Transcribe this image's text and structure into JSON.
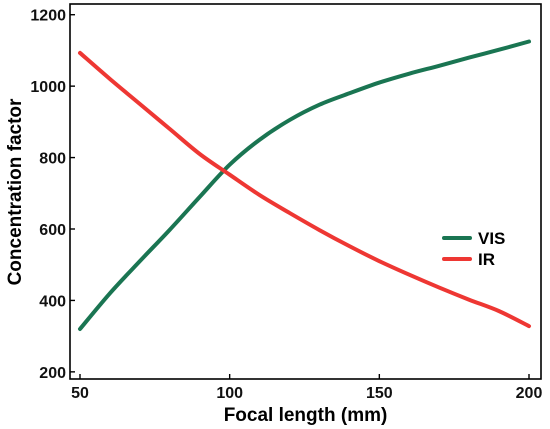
{
  "chart_data": {
    "type": "line",
    "title": "",
    "xlabel": "Focal length (mm)",
    "ylabel": "Concentration factor",
    "xlim": [
      50,
      200
    ],
    "ylim": [
      180,
      1230
    ],
    "xticks": [
      50,
      100,
      150,
      200
    ],
    "yticks": [
      200,
      400,
      600,
      800,
      1000,
      1200
    ],
    "grid": false,
    "legend_position": "right",
    "series": [
      {
        "name": "VIS",
        "color": "#1a7552",
        "x": [
          50,
          60,
          70,
          80,
          90,
          100,
          110,
          120,
          130,
          140,
          150,
          160,
          170,
          180,
          190,
          200
        ],
        "y": [
          320,
          420,
          510,
          598,
          690,
          780,
          850,
          905,
          948,
          980,
          1010,
          1035,
          1057,
          1080,
          1102,
          1125
        ]
      },
      {
        "name": "IR",
        "color": "#ee3733",
        "x": [
          50,
          60,
          70,
          80,
          90,
          100,
          110,
          120,
          130,
          140,
          150,
          160,
          170,
          180,
          190,
          200
        ],
        "y": [
          1093,
          1020,
          950,
          880,
          810,
          752,
          695,
          645,
          597,
          552,
          510,
          472,
          436,
          402,
          370,
          328
        ]
      }
    ]
  }
}
